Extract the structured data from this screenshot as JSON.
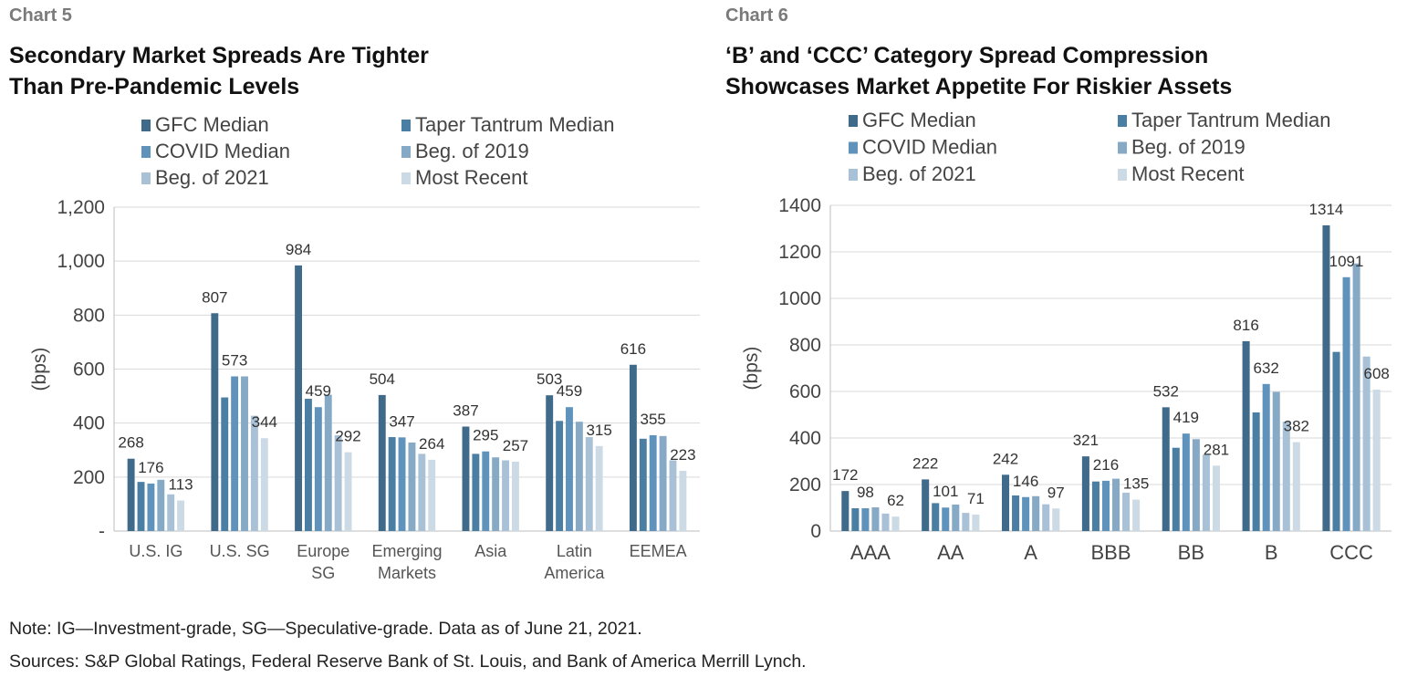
{
  "left_panel": {
    "label": "Chart 5",
    "title_lines": [
      "Secondary Market Spreads Are Tighter",
      "Than Pre-Pandemic Levels"
    ]
  },
  "right_panel": {
    "label": "Chart 6",
    "title_lines": [
      "‘B’ and ‘CCC’ Category Spread Compression",
      "Showcases Market Appetite For Riskier Assets"
    ]
  },
  "series_colors": [
    "#3f6a8a",
    "#4a7ea3",
    "#5f93bb",
    "#86a9c6",
    "#a9c1d6",
    "#ccdae6"
  ],
  "chart_data": [
    {
      "type": "bar",
      "title": "Secondary Market Spreads Are Tighter Than Pre-Pandemic Levels",
      "ylabel": "(bps)",
      "ylim": [
        0,
        1200
      ],
      "yticks": [
        "-",
        "200",
        "400",
        "600",
        "800",
        "1,000",
        "1,200"
      ],
      "grid": true,
      "legend_position": "top",
      "categories": [
        "U.S. IG",
        "U.S. SG",
        "Europe SG",
        "Emerging Markets",
        "Asia",
        "Latin America",
        "EEMEA"
      ],
      "category_lines": [
        [
          "U.S. IG"
        ],
        [
          "U.S. SG"
        ],
        [
          "Europe",
          "SG"
        ],
        [
          "Emerging",
          "Markets"
        ],
        [
          "Asia"
        ],
        [
          "Latin",
          "America"
        ],
        [
          "EEMEA"
        ]
      ],
      "series": [
        {
          "name": "GFC Median",
          "values": [
            268,
            807,
            984,
            504,
            387,
            503,
            616
          ]
        },
        {
          "name": "Taper Tantrum Median",
          "values": [
            182,
            495,
            490,
            348,
            286,
            408,
            342
          ]
        },
        {
          "name": "COVID Median",
          "values": [
            176,
            573,
            459,
            347,
            295,
            459,
            355
          ]
        },
        {
          "name": "Beg. of 2019",
          "values": [
            190,
            573,
            505,
            328,
            273,
            405,
            352
          ]
        },
        {
          "name": "Beg. of 2021",
          "values": [
            136,
            427,
            355,
            286,
            262,
            348,
            262
          ]
        },
        {
          "name": "Most Recent",
          "values": [
            113,
            344,
            292,
            264,
            257,
            315,
            223
          ]
        }
      ],
      "data_labels": [
        {
          "category": 0,
          "series": 0,
          "text": "268"
        },
        {
          "category": 0,
          "series": 2,
          "text": "176"
        },
        {
          "category": 0,
          "series": 5,
          "text": "113"
        },
        {
          "category": 1,
          "series": 0,
          "text": "807"
        },
        {
          "category": 1,
          "series": 2,
          "text": "573"
        },
        {
          "category": 1,
          "series": 5,
          "text": "344"
        },
        {
          "category": 2,
          "series": 0,
          "text": "984"
        },
        {
          "category": 2,
          "series": 2,
          "text": "459"
        },
        {
          "category": 2,
          "series": 5,
          "text": "292"
        },
        {
          "category": 3,
          "series": 0,
          "text": "504"
        },
        {
          "category": 3,
          "series": 2,
          "text": "347"
        },
        {
          "category": 3,
          "series": 5,
          "text": "264"
        },
        {
          "category": 4,
          "series": 0,
          "text": "387"
        },
        {
          "category": 4,
          "series": 2,
          "text": "295"
        },
        {
          "category": 4,
          "series": 5,
          "text": "257"
        },
        {
          "category": 5,
          "series": 0,
          "text": "503"
        },
        {
          "category": 5,
          "series": 2,
          "text": "459"
        },
        {
          "category": 5,
          "series": 5,
          "text": "315"
        },
        {
          "category": 6,
          "series": 0,
          "text": "616"
        },
        {
          "category": 6,
          "series": 2,
          "text": "355"
        },
        {
          "category": 6,
          "series": 5,
          "text": "223"
        }
      ]
    },
    {
      "type": "bar",
      "title": "‘B’ and ‘CCC’ Category Spread Compression Showcases Market Appetite For Riskier Assets",
      "ylabel": "(bps)",
      "ylim": [
        0,
        1400
      ],
      "yticks": [
        "0",
        "200",
        "400",
        "600",
        "800",
        "1000",
        "1200",
        "1400"
      ],
      "grid": true,
      "legend_position": "top",
      "categories": [
        "AAA",
        "AA",
        "A",
        "BBB",
        "BB",
        "B",
        "CCC"
      ],
      "category_lines": [
        [
          "AAA"
        ],
        [
          "AA"
        ],
        [
          "A"
        ],
        [
          "BBB"
        ],
        [
          "BB"
        ],
        [
          "B"
        ],
        [
          "CCC"
        ]
      ],
      "series": [
        {
          "name": "GFC Median",
          "values": [
            172,
            222,
            242,
            321,
            532,
            816,
            1314
          ]
        },
        {
          "name": "Taper Tantrum Median",
          "values": [
            98,
            120,
            153,
            213,
            358,
            510,
            770
          ]
        },
        {
          "name": "COVID Median",
          "values": [
            98,
            101,
            146,
            216,
            419,
            632,
            1091
          ]
        },
        {
          "name": "Beg. of 2019",
          "values": [
            102,
            114,
            150,
            225,
            395,
            598,
            1150
          ]
        },
        {
          "name": "Beg. of 2021",
          "values": [
            75,
            78,
            115,
            165,
            328,
            470,
            750
          ]
        },
        {
          "name": "Most Recent",
          "values": [
            62,
            71,
            97,
            135,
            281,
            382,
            608
          ]
        }
      ],
      "data_labels": [
        {
          "category": 0,
          "series": 0,
          "text": "172"
        },
        {
          "category": 0,
          "series": 2,
          "text": "98"
        },
        {
          "category": 0,
          "series": 5,
          "text": "62"
        },
        {
          "category": 1,
          "series": 0,
          "text": "222"
        },
        {
          "category": 1,
          "series": 2,
          "text": "101"
        },
        {
          "category": 1,
          "series": 5,
          "text": "71"
        },
        {
          "category": 2,
          "series": 0,
          "text": "242"
        },
        {
          "category": 2,
          "series": 2,
          "text": "146"
        },
        {
          "category": 2,
          "series": 5,
          "text": "97"
        },
        {
          "category": 3,
          "series": 0,
          "text": "321"
        },
        {
          "category": 3,
          "series": 2,
          "text": "216"
        },
        {
          "category": 3,
          "series": 5,
          "text": "135"
        },
        {
          "category": 4,
          "series": 0,
          "text": "532"
        },
        {
          "category": 4,
          "series": 2,
          "text": "419"
        },
        {
          "category": 4,
          "series": 5,
          "text": "281"
        },
        {
          "category": 5,
          "series": 0,
          "text": "816"
        },
        {
          "category": 5,
          "series": 2,
          "text": "632"
        },
        {
          "category": 5,
          "series": 5,
          "text": "382"
        },
        {
          "category": 6,
          "series": 0,
          "text": "1314"
        },
        {
          "category": 6,
          "series": 2,
          "text": "1091"
        },
        {
          "category": 6,
          "series": 5,
          "text": "608"
        }
      ]
    }
  ],
  "footer": {
    "note": "Note: IG—Investment-grade, SG—Speculative-grade. Data as of June 21, 2021.",
    "sources": "Sources: S&P Global Ratings, Federal Reserve Bank of St. Louis, and Bank of America Merrill Lynch."
  }
}
